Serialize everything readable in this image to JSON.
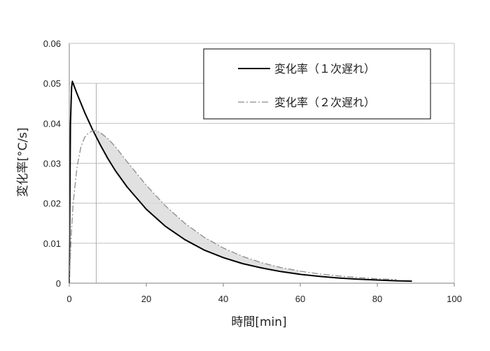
{
  "chart_data": {
    "type": "line",
    "title": "",
    "xlabel": "時間[min]",
    "ylabel": "変化率[°C/s]",
    "xlim": [
      0,
      100
    ],
    "ylim": [
      0,
      0.06
    ],
    "x_ticks": [
      "0",
      "20",
      "40",
      "60",
      "80",
      "100"
    ],
    "y_ticks": [
      "0",
      "0.01",
      "0.02",
      "0.03",
      "0.04",
      "0.05",
      "0.06"
    ],
    "grid": "horizontal",
    "legend_position": "top-right",
    "vertical_marker_x": 7,
    "series": [
      {
        "name": "変化率（１次遅れ）",
        "style": "solid",
        "color": "#000000",
        "x": [
          0,
          0.3,
          0.6,
          0.8,
          2,
          4,
          6,
          8,
          10,
          12,
          15,
          20,
          25,
          30,
          35,
          40,
          45,
          50,
          55,
          60,
          65,
          70,
          75,
          80,
          85,
          89
        ],
        "y": [
          0,
          0.04,
          0.049,
          0.0505,
          0.0474,
          0.0427,
          0.0385,
          0.0347,
          0.0312,
          0.0281,
          0.0241,
          0.0185,
          0.0142,
          0.0109,
          0.0083,
          0.0064,
          0.0049,
          0.0038,
          0.0029,
          0.0022,
          0.0017,
          0.0013,
          0.001,
          0.00078,
          0.0006,
          0.0005
        ]
      },
      {
        "name": "変化率（２次遅れ）",
        "style": "dash-dot",
        "color": "#8c8c8c",
        "x": [
          0,
          0.5,
          1,
          2,
          3,
          4,
          5,
          6,
          7,
          8,
          10,
          12,
          15,
          20,
          25,
          30,
          35,
          40,
          45,
          50,
          55,
          60,
          65,
          70,
          75,
          80,
          85
        ],
        "y": [
          0,
          0.012,
          0.02,
          0.029,
          0.034,
          0.0365,
          0.0376,
          0.0381,
          0.0381,
          0.0377,
          0.0362,
          0.0341,
          0.0304,
          0.0245,
          0.0193,
          0.015,
          0.0115,
          0.0088,
          0.0067,
          0.0051,
          0.0039,
          0.003,
          0.0023,
          0.0018,
          0.0014,
          0.0011,
          0.0009
        ]
      }
    ]
  }
}
